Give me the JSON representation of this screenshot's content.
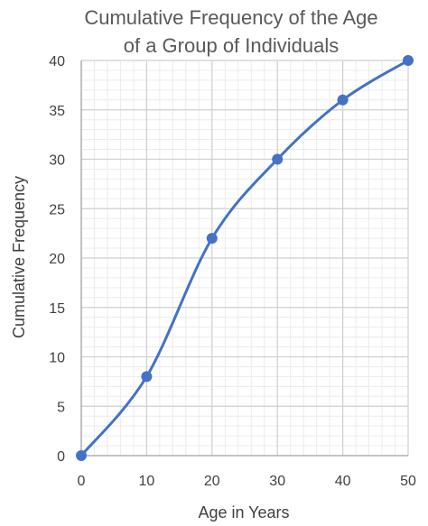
{
  "chart_data": {
    "type": "line",
    "title_lines": [
      "Cumulative Frequency of the Age",
      "of a Group of Individuals"
    ],
    "xlabel": "Age in Years",
    "ylabel": "Cumulative Frequency",
    "x": [
      0,
      10,
      20,
      30,
      40,
      50
    ],
    "y": [
      0,
      8,
      22,
      30,
      36,
      40
    ],
    "xlim": [
      0,
      50
    ],
    "ylim": [
      0,
      40
    ],
    "x_ticks": [
      "0",
      "10",
      "20",
      "30",
      "40",
      "50"
    ],
    "y_ticks": [
      "0",
      "5",
      "10",
      "15",
      "20",
      "25",
      "30",
      "35",
      "40"
    ],
    "grid": "major and minor",
    "smooth": true,
    "markers": true,
    "legend": "none",
    "colors": {
      "series": "#4472C4",
      "major_grid": "#d0d0d0",
      "minor_grid": "#ececec",
      "text": "#404040",
      "title": "#595959"
    }
  }
}
